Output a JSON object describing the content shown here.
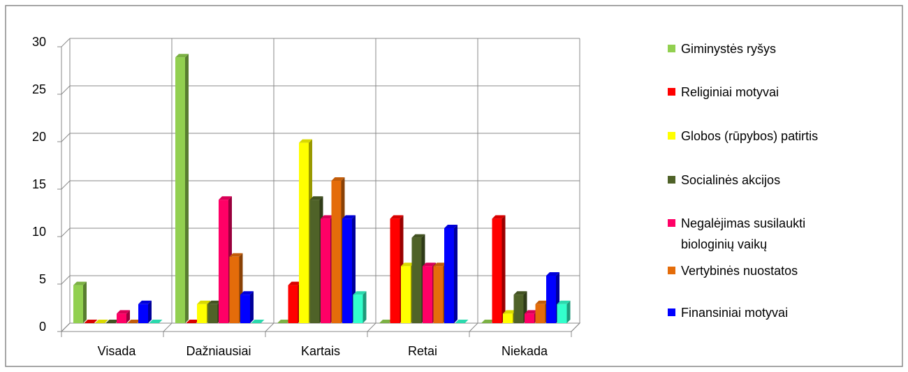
{
  "chart_data": {
    "type": "bar",
    "categories": [
      "Visada",
      "Dažniausiai",
      "Kartais",
      "Retai",
      "Niekada"
    ],
    "series": [
      {
        "name": "Giminystės ryšys",
        "color": "#92d050",
        "values": [
          4,
          28,
          0,
          0,
          0
        ]
      },
      {
        "name": "Religiniai motyvai",
        "color": "#ff0000",
        "values": [
          0,
          0,
          4,
          11,
          11
        ]
      },
      {
        "name": "Globos (rūpybos) patirtis",
        "color": "#ffff00",
        "values": [
          0,
          2,
          19,
          6,
          1
        ]
      },
      {
        "name": "Socialinės akcijos",
        "color": "#4f6228",
        "values": [
          0,
          2,
          13,
          9,
          3
        ]
      },
      {
        "name": "Negalėjimas susilaukti biologinių vaikų",
        "color": "#ff0066",
        "values": [
          1,
          13,
          11,
          6,
          1
        ]
      },
      {
        "name": "Vertybinės nuostatos",
        "color": "#e46c0a",
        "values": [
          0,
          7,
          15,
          6,
          2
        ]
      },
      {
        "name": "Finansiniai motyvai",
        "color": "#0000ff",
        "values": [
          2,
          3,
          11,
          10,
          5
        ]
      },
      {
        "color": "#33ffcc",
        "values": [
          0,
          0,
          3,
          0,
          2
        ]
      }
    ],
    "ylim": [
      0,
      30
    ],
    "yticks": [
      0,
      5,
      10,
      15,
      20,
      25,
      30
    ],
    "grid": true,
    "legend": "right"
  }
}
